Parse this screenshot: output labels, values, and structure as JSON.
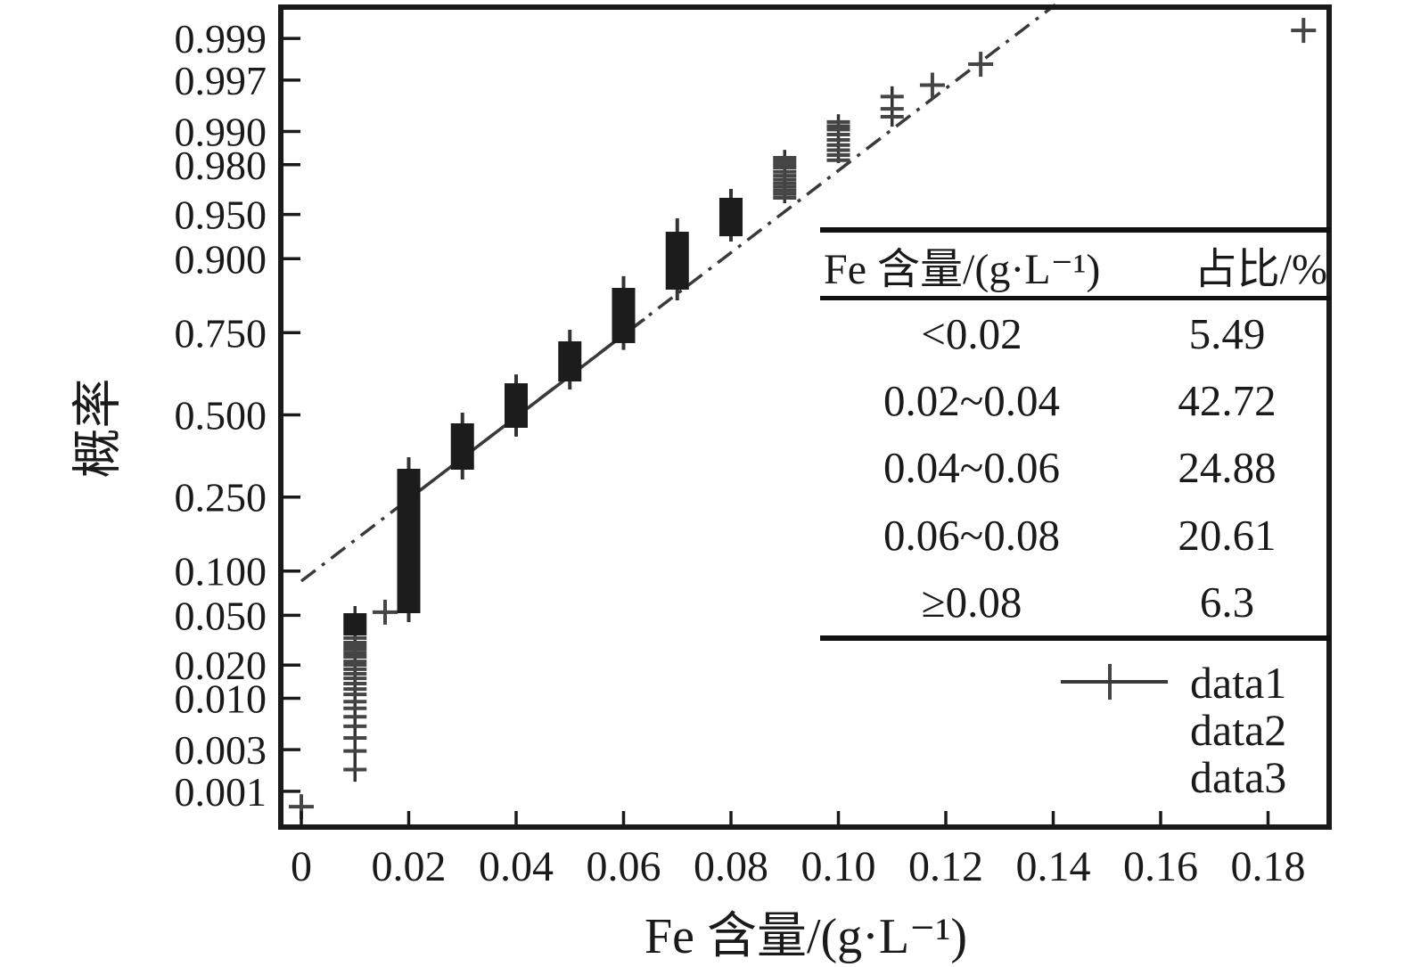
{
  "colors": {
    "ink": "#1a1a1a",
    "marker": "#454545",
    "stack_line": "#333333",
    "bar_fill": "#1c1c1c",
    "fit_line": "#3a3a3a"
  },
  "chart_data": {
    "type": "scatter",
    "subtype": "normal-probability-plot",
    "title": "",
    "xlabel": "Fe 含量/(g·L⁻¹)",
    "ylabel": "概率",
    "grid": false,
    "x_ticks": [
      "0",
      "0.02",
      "0.04",
      "0.06",
      "0.08",
      "0.10",
      "0.12",
      "0.14",
      "0.16",
      "0.18"
    ],
    "x_tick_values": [
      0,
      0.02,
      0.04,
      0.06,
      0.08,
      0.1,
      0.12,
      0.14,
      0.16,
      0.18
    ],
    "y_ticks": [
      "0.999",
      "0.997",
      "0.990",
      "0.980",
      "0.950",
      "0.900",
      "0.750",
      "0.500",
      "0.250",
      "0.100",
      "0.050",
      "0.020",
      "0.010",
      "0.003",
      "0.001"
    ],
    "y_tick_values": [
      0.999,
      0.997,
      0.99,
      0.98,
      0.95,
      0.9,
      0.75,
      0.5,
      0.25,
      0.1,
      0.05,
      0.02,
      0.01,
      0.003,
      0.001
    ],
    "x_range": [
      -0.0038,
      0.1917
    ],
    "p_range": [
      0.00034,
      0.99962
    ],
    "y_scale": "probit",
    "series": [
      {
        "name": "data1",
        "marker": "plus",
        "singles": [
          {
            "x": 0.0,
            "p": 0.00065
          },
          {
            "x": 0.0156,
            "p": 0.0527
          },
          {
            "x": 0.1175,
            "p": 0.9966
          },
          {
            "x": 0.1265,
            "p": 0.998
          },
          {
            "x": 0.1866,
            "p": 0.9992
          }
        ],
        "stacks": [
          {
            "x": 0.01,
            "line_p": [
              0.0013,
              0.0583
            ],
            "blob_p": [
              0.0351,
              0.0518
            ],
            "ticks_p": [
              0.0335,
              0.0308,
              0.0288,
              0.027,
              0.0252,
              0.0235,
              0.0215,
              0.0201,
              0.0184,
              0.0168,
              0.0153,
              0.0137,
              0.0122,
              0.0109,
              0.0093,
              0.008,
              0.0066,
              0.0053,
              0.004,
              0.0029,
              0.0018
            ]
          },
          {
            "x": 0.09,
            "line_p": [
              0.9588,
              0.9852
            ],
            "ticks_p": [
              0.9626,
              0.965,
              0.9672,
              0.9693,
              0.9713,
              0.9733,
              0.9752,
              0.977,
              0.9788,
              0.9802,
              0.9815,
              0.9826
            ]
          },
          {
            "x": 0.1,
            "line_p": [
              0.9806,
              0.9932
            ],
            "ticks_p": [
              0.9817,
              0.9835,
              0.9851,
              0.9866,
              0.988,
              0.9893,
              0.9904,
              0.9911,
              0.9919
            ]
          },
          {
            "x": 0.11,
            "line_p": [
              0.991,
              0.9965
            ],
            "ticks_p": [
              0.9928,
              0.994,
              0.9955
            ]
          }
        ],
        "bars": [
          {
            "x": 0.02,
            "rect_p": [
              0.0518,
              0.329
            ],
            "whisker_p": [
              0.0445,
              0.3641
            ]
          },
          {
            "x": 0.03,
            "rect_p": [
              0.3264,
              0.4723
            ],
            "whisker_p": [
              0.298,
              0.5073
            ]
          },
          {
            "x": 0.04,
            "rect_p": [
              0.4578,
              0.6023
            ],
            "whisker_p": [
              0.4292,
              0.63
            ]
          },
          {
            "x": 0.05,
            "rect_p": [
              0.6081,
              0.7269
            ],
            "whisker_p": [
              0.5826,
              0.7576
            ]
          },
          {
            "x": 0.06,
            "rect_p": [
              0.7221,
              0.8514
            ],
            "whisker_p": [
              0.7029,
              0.8725
            ]
          },
          {
            "x": 0.07,
            "rect_p": [
              0.848,
              0.9336
            ],
            "whisker_p": [
              0.8264,
              0.9466
            ]
          },
          {
            "x": 0.08,
            "rect_p": [
              0.9287,
              0.9626
            ],
            "whisker_p": [
              0.9226,
              0.9682
            ]
          }
        ]
      },
      {
        "name": "data2",
        "type": "line",
        "style": "solid",
        "x1": 0.0191,
        "p1": 0.2356,
        "x2": 0.0639,
        "p2": 0.7842
      },
      {
        "name": "data3",
        "type": "line",
        "style": "dashdot",
        "x1": 0.0,
        "p1": 0.0862,
        "x2": 0.1404,
        "p2": 0.99962
      }
    ]
  },
  "inset_table": {
    "header": [
      "Fe 含量/(g·L⁻¹)",
      "占比/%"
    ],
    "rows": [
      [
        "<0.02",
        "5.49"
      ],
      [
        "0.02~0.04",
        "42.72"
      ],
      [
        "0.04~0.06",
        "24.88"
      ],
      [
        "0.06~0.08",
        "20.61"
      ],
      [
        "≥0.08",
        "6.3"
      ]
    ]
  },
  "legend": [
    {
      "marker": "plus",
      "label": "data1"
    },
    {
      "marker": "solid-line",
      "label": "data2"
    },
    {
      "marker": "dashdot-line",
      "label": "data3"
    }
  ]
}
